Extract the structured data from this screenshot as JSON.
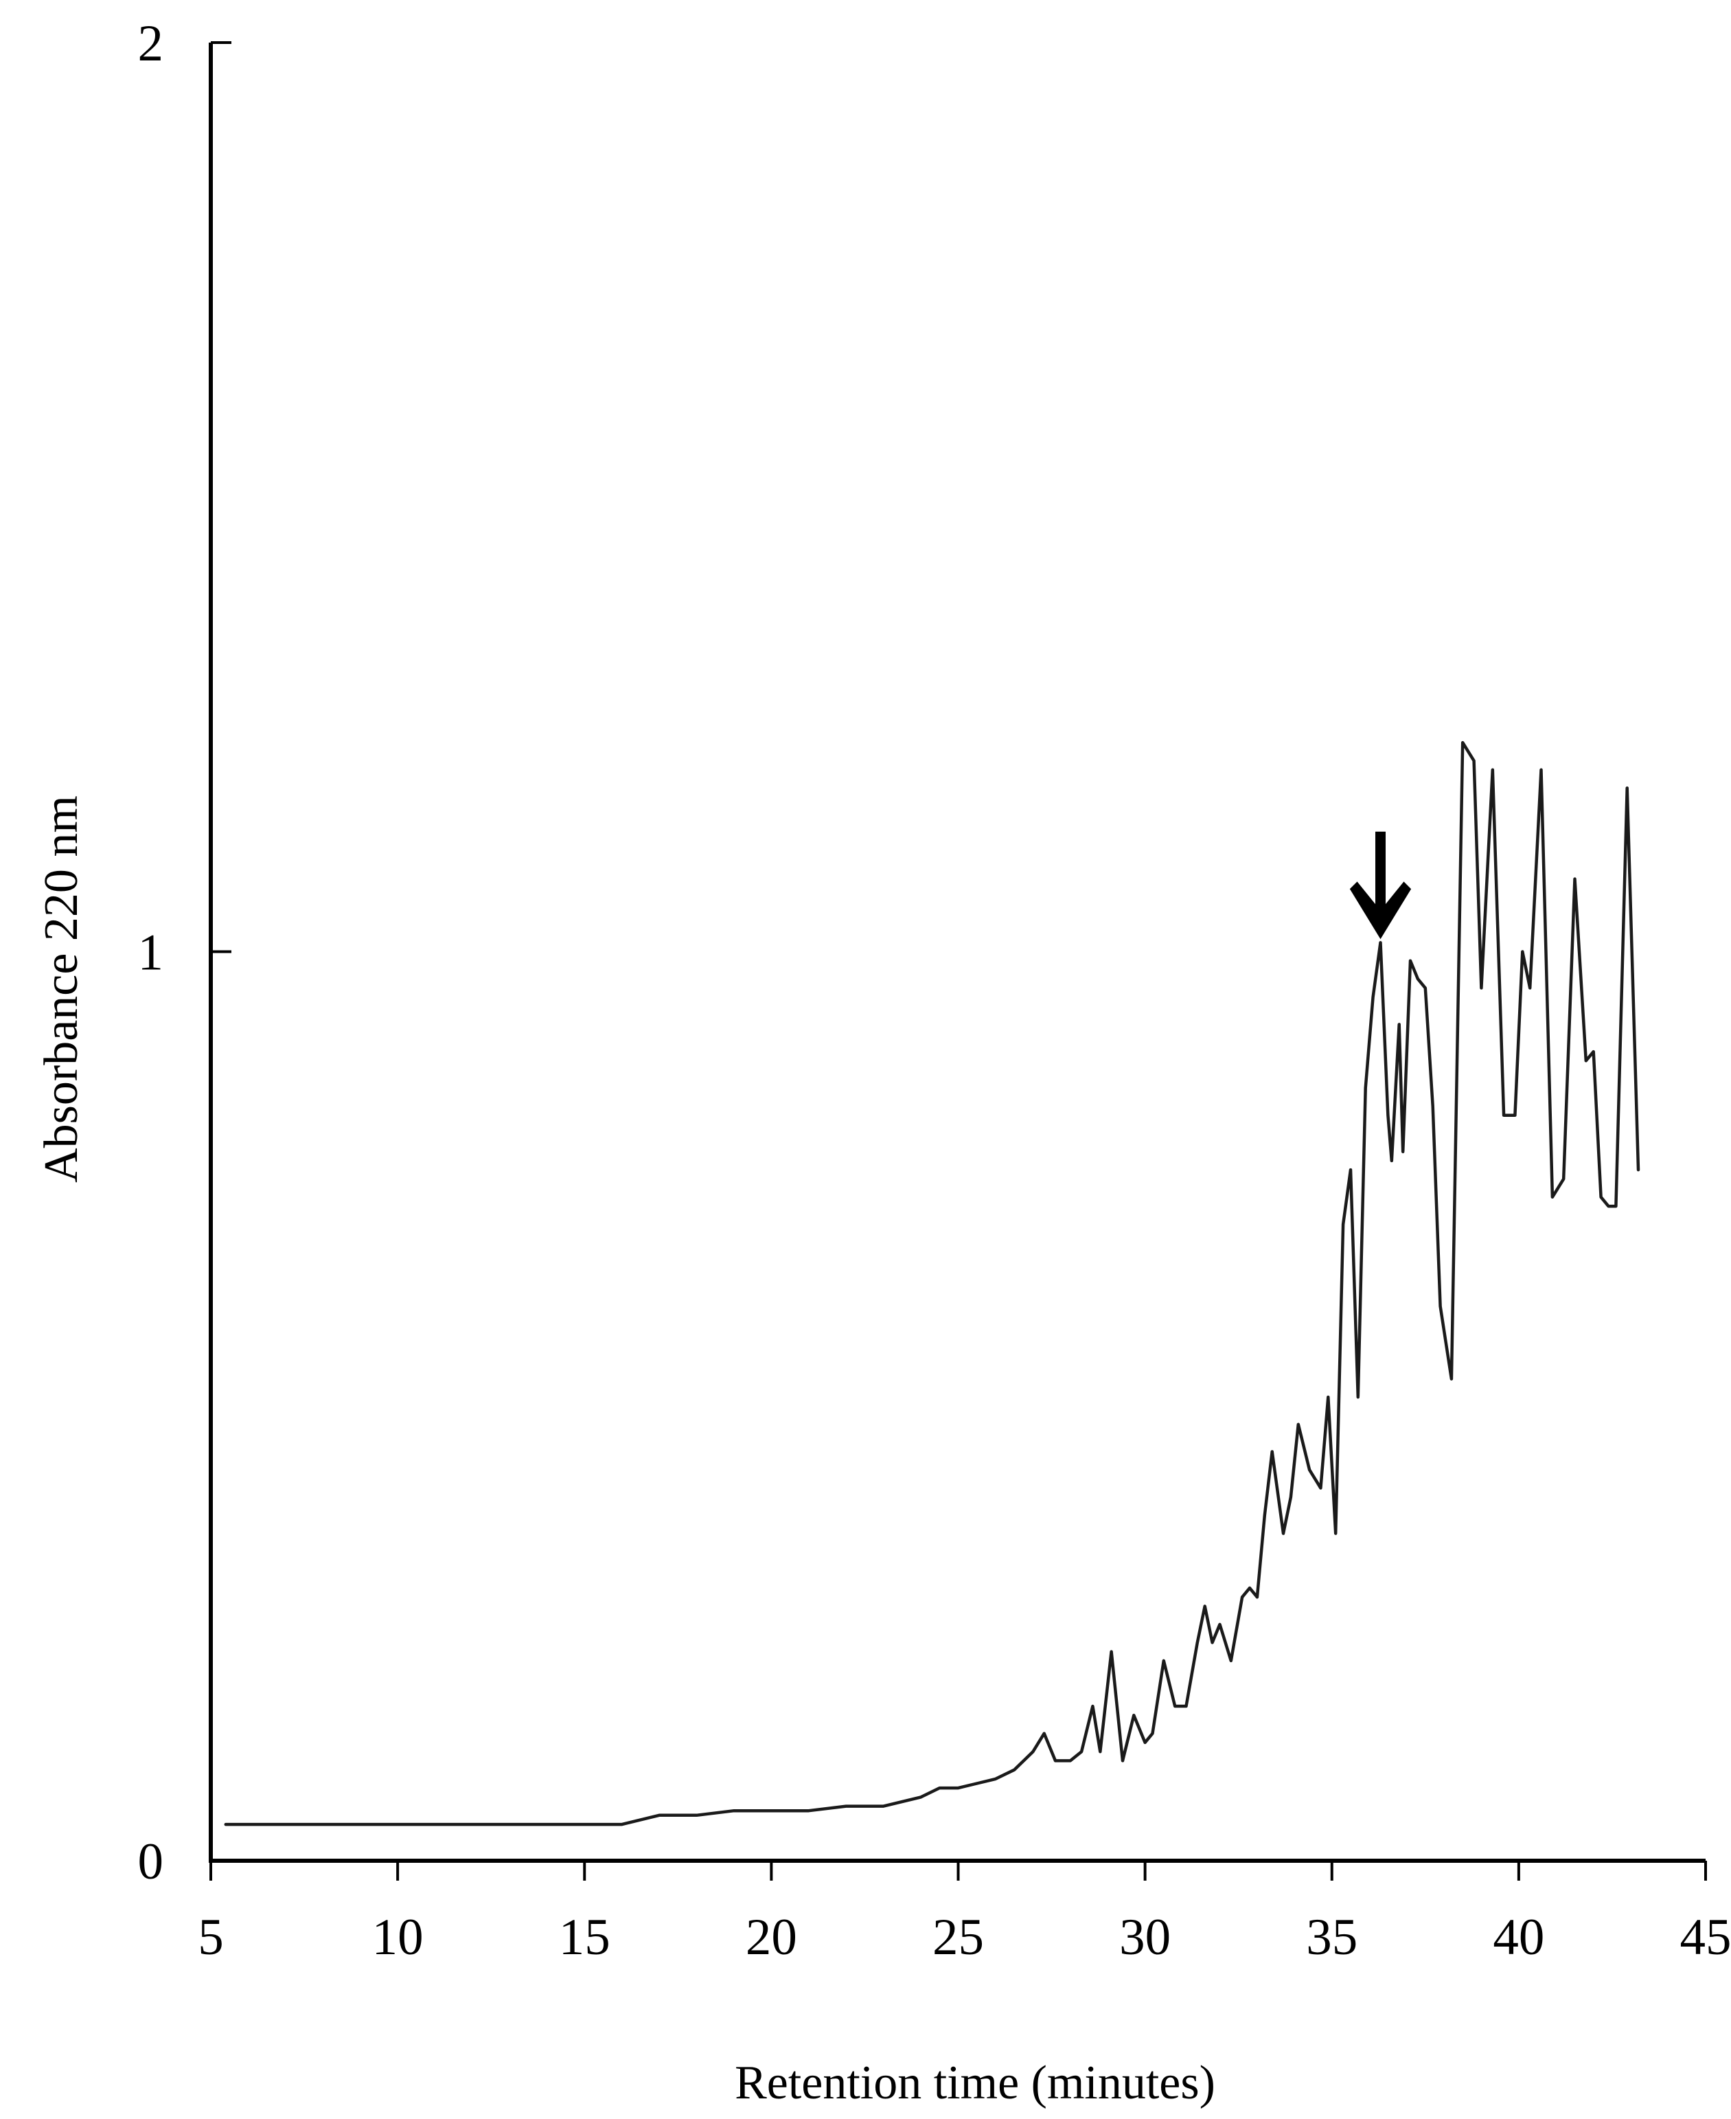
{
  "chart_data": {
    "type": "line",
    "title": "",
    "xlabel": "Retention time  (minutes)",
    "ylabel": "Absorbance 220 nm",
    "xlim": [
      5,
      45
    ],
    "ylim": [
      0,
      2
    ],
    "x_ticks": [
      "5",
      "10",
      "15",
      "20",
      "25",
      "30",
      "35",
      "40",
      "45"
    ],
    "y_ticks": [
      "0",
      "1",
      "2"
    ],
    "grid": false,
    "line_color": "#1a1a1a",
    "annotations": [
      {
        "type": "arrow-down",
        "x": 36.3,
        "y": 1.01
      }
    ],
    "series": [
      {
        "x": [
          5.4,
          8,
          10,
          12,
          14,
          16,
          16.5,
          17,
          18,
          19,
          20,
          21,
          22,
          23,
          24,
          24.5,
          25,
          25.5,
          26,
          26.5,
          27,
          27.3,
          27.6,
          28,
          28.3,
          28.6,
          28.8,
          29.1,
          29.4,
          29.7,
          30,
          30.2,
          30.5,
          30.8,
          31.1,
          31.4,
          31.6,
          31.8,
          32.0,
          32.3,
          32.6,
          32.8,
          33.0,
          33.2,
          33.4,
          33.7,
          33.9,
          34.1,
          34.4,
          34.7,
          34.9,
          35.1,
          35.3,
          35.5,
          35.7,
          35.9,
          36.1,
          36.3,
          36.5,
          36.6,
          36.8,
          36.9,
          37.1,
          37.3,
          37.5,
          37.7,
          37.9,
          38.2,
          38.5,
          38.8,
          39.0,
          39.3,
          39.6,
          39.9,
          40.1,
          40.3,
          40.6,
          40.9,
          41.2,
          41.5,
          41.8,
          42.0,
          42.2,
          42.4,
          42.6,
          42.9,
          43.2
        ],
        "y": [
          0.04,
          0.04,
          0.04,
          0.04,
          0.04,
          0.04,
          0.045,
          0.05,
          0.05,
          0.055,
          0.055,
          0.055,
          0.06,
          0.06,
          0.07,
          0.08,
          0.08,
          0.085,
          0.09,
          0.1,
          0.12,
          0.14,
          0.11,
          0.11,
          0.12,
          0.17,
          0.12,
          0.23,
          0.11,
          0.16,
          0.13,
          0.14,
          0.22,
          0.17,
          0.17,
          0.24,
          0.28,
          0.24,
          0.26,
          0.22,
          0.29,
          0.3,
          0.29,
          0.38,
          0.45,
          0.36,
          0.4,
          0.48,
          0.43,
          0.41,
          0.51,
          0.36,
          0.7,
          0.76,
          0.51,
          0.85,
          0.95,
          1.01,
          0.82,
          0.77,
          0.92,
          0.78,
          0.99,
          0.97,
          0.96,
          0.83,
          0.61,
          0.53,
          1.23,
          1.21,
          0.96,
          1.2,
          0.82,
          0.82,
          1.0,
          0.96,
          1.2,
          0.73,
          0.75,
          1.08,
          0.88,
          0.89,
          0.73,
          0.72,
          0.72,
          1.18,
          0.76
        ]
      }
    ]
  }
}
